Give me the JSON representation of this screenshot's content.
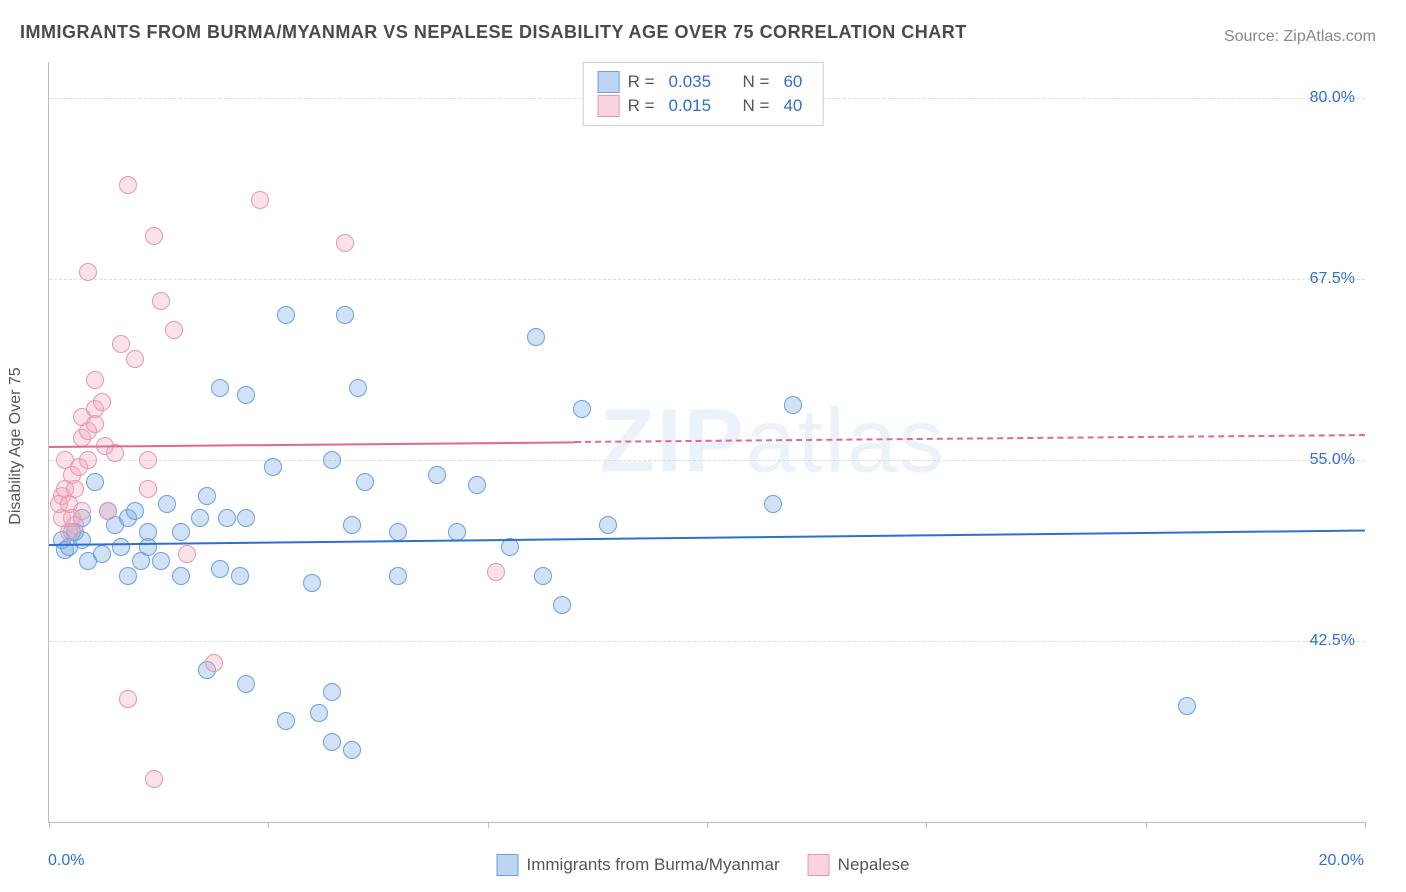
{
  "title": "IMMIGRANTS FROM BURMA/MYANMAR VS NEPALESE DISABILITY AGE OVER 75 CORRELATION CHART",
  "source_label": "Source: ",
  "source_value": "ZipAtlas.com",
  "yaxis_title": "Disability Age Over 75",
  "watermark_a": "ZIP",
  "watermark_b": "atlas",
  "chart": {
    "type": "scatter",
    "background_color": "#ffffff",
    "grid_color": "#dddddd",
    "axis_color": "#bbbbbb",
    "xlim": [
      0,
      20
    ],
    "ylim": [
      30,
      82.5
    ],
    "x_ticks": [
      0,
      3.33,
      6.67,
      10,
      13.33,
      16.67,
      20
    ],
    "x_tick_labels": {
      "0": "0.0%",
      "20": "20.0%"
    },
    "y_gridlines": [
      42.5,
      55.0,
      67.5,
      80.0
    ],
    "y_tick_labels": {
      "42.5": "42.5%",
      "55.0": "55.0%",
      "67.5": "67.5%",
      "80.0": "80.0%"
    },
    "marker_radius": 9,
    "series": [
      {
        "name": "Immigrants from Burma/Myanmar",
        "color_fill": "rgba(122,171,230,0.35)",
        "color_stroke": "#6aa0df",
        "css": "blue",
        "R": "0.035",
        "N": "60",
        "trend": {
          "y_at_x0": 49.2,
          "y_at_x20": 50.2,
          "color": "#2f6fd0",
          "dash_after_x": null
        },
        "points": [
          [
            0.2,
            49.5
          ],
          [
            0.25,
            48.8
          ],
          [
            0.35,
            50.0
          ],
          [
            0.3,
            49.0
          ],
          [
            0.5,
            49.5
          ],
          [
            0.6,
            48.0
          ],
          [
            0.5,
            51.0
          ],
          [
            0.9,
            51.5
          ],
          [
            0.4,
            50.0
          ],
          [
            0.8,
            48.5
          ],
          [
            1.0,
            50.5
          ],
          [
            1.2,
            51.0
          ],
          [
            1.1,
            49.0
          ],
          [
            1.5,
            50.0
          ],
          [
            1.3,
            51.5
          ],
          [
            1.5,
            49.0
          ],
          [
            1.4,
            48.0
          ],
          [
            1.2,
            47.0
          ],
          [
            2.6,
            47.5
          ],
          [
            1.8,
            52.0
          ],
          [
            2.3,
            51.0
          ],
          [
            2.0,
            50.0
          ],
          [
            2.4,
            52.5
          ],
          [
            2.7,
            51.0
          ],
          [
            3.0,
            51.0
          ],
          [
            3.0,
            59.5
          ],
          [
            2.6,
            60.0
          ],
          [
            3.4,
            54.5
          ],
          [
            3.6,
            65.0
          ],
          [
            4.3,
            55.0
          ],
          [
            4.7,
            60.0
          ],
          [
            4.5,
            65.0
          ],
          [
            4.8,
            53.5
          ],
          [
            4.6,
            50.5
          ],
          [
            5.3,
            50.0
          ],
          [
            5.9,
            54.0
          ],
          [
            6.5,
            53.3
          ],
          [
            7.4,
            63.5
          ],
          [
            8.1,
            58.5
          ],
          [
            11.3,
            58.8
          ],
          [
            11.0,
            52.0
          ],
          [
            2.0,
            47.0
          ],
          [
            2.9,
            47.0
          ],
          [
            4.0,
            46.5
          ],
          [
            4.1,
            37.5
          ],
          [
            3.6,
            37.0
          ],
          [
            3.0,
            39.5
          ],
          [
            4.3,
            39.0
          ],
          [
            4.3,
            35.5
          ],
          [
            4.6,
            35.0
          ],
          [
            5.3,
            47.0
          ],
          [
            7.0,
            49.0
          ],
          [
            7.8,
            45.0
          ],
          [
            7.5,
            47.0
          ],
          [
            17.3,
            38.0
          ],
          [
            2.4,
            40.5
          ],
          [
            1.7,
            48.0
          ],
          [
            6.2,
            50.0
          ],
          [
            0.7,
            53.5
          ],
          [
            8.5,
            50.5
          ]
        ]
      },
      {
        "name": "Nepalese",
        "color_fill": "rgba(244,170,190,0.35)",
        "color_stroke": "#e598ae",
        "css": "pink",
        "R": "0.015",
        "N": "40",
        "trend": {
          "y_at_x0": 56.0,
          "y_at_x20": 56.8,
          "color": "#e06a8c",
          "dash_after_x": 8.0
        },
        "points": [
          [
            0.15,
            52.0
          ],
          [
            0.2,
            52.5
          ],
          [
            0.25,
            53.0
          ],
          [
            0.3,
            52.0
          ],
          [
            0.2,
            51.0
          ],
          [
            0.35,
            54.0
          ],
          [
            0.25,
            55.0
          ],
          [
            0.4,
            50.5
          ],
          [
            0.4,
            53.0
          ],
          [
            0.3,
            50.0
          ],
          [
            0.45,
            54.5
          ],
          [
            0.5,
            56.5
          ],
          [
            0.5,
            58.0
          ],
          [
            0.6,
            57.0
          ],
          [
            0.6,
            55.0
          ],
          [
            0.7,
            57.5
          ],
          [
            0.7,
            58.5
          ],
          [
            0.6,
            68.0
          ],
          [
            0.8,
            59.0
          ],
          [
            1.1,
            63.0
          ],
          [
            1.2,
            74.0
          ],
          [
            1.3,
            62.0
          ],
          [
            1.5,
            55.0
          ],
          [
            1.5,
            53.0
          ],
          [
            1.7,
            66.0
          ],
          [
            1.6,
            70.5
          ],
          [
            1.9,
            64.0
          ],
          [
            3.2,
            73.0
          ],
          [
            4.5,
            70.0
          ],
          [
            2.5,
            41.0
          ],
          [
            2.1,
            48.5
          ],
          [
            1.2,
            38.5
          ],
          [
            1.6,
            33.0
          ],
          [
            0.9,
            51.5
          ],
          [
            0.5,
            51.5
          ],
          [
            0.35,
            51.0
          ],
          [
            6.8,
            47.3
          ],
          [
            1.0,
            55.5
          ],
          [
            0.85,
            56.0
          ],
          [
            0.7,
            60.5
          ]
        ]
      }
    ]
  },
  "legend_top": {
    "R_label": "R =",
    "N_label": "N ="
  },
  "legend_bottom": {
    "items": [
      "Immigrants from Burma/Myanmar",
      "Nepalese"
    ]
  }
}
